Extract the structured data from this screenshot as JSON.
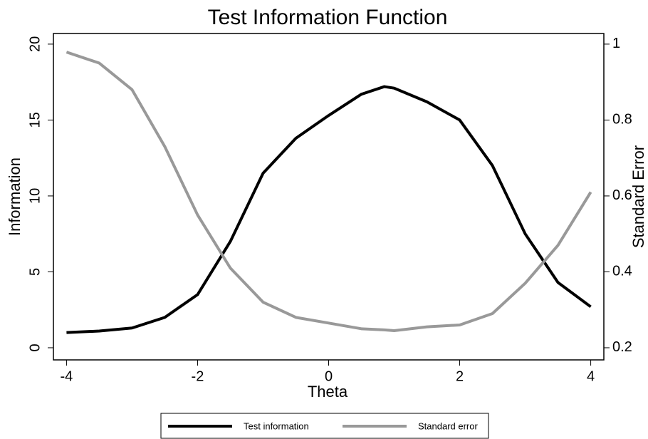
{
  "chart_data": {
    "type": "line",
    "title": "Test Information Function",
    "x_label": "Theta",
    "y_label": "Information",
    "y2_label": "Standard Error",
    "x": [
      -4,
      -3.5,
      -3,
      -2.5,
      -2,
      -1.5,
      -1,
      -0.5,
      0,
      0.5,
      0.85,
      1,
      1.5,
      2,
      2.5,
      3,
      3.5,
      4
    ],
    "series": [
      {
        "name": "Test information",
        "color": "#000000",
        "axis": "y",
        "values": [
          1.0,
          1.1,
          1.3,
          2.0,
          3.5,
          7.0,
          11.5,
          13.8,
          15.3,
          16.7,
          17.2,
          17.1,
          16.2,
          15.0,
          12.0,
          7.5,
          4.3,
          2.7
        ]
      },
      {
        "name": "Standard error",
        "color": "#999999",
        "axis": "y2",
        "values": [
          0.979,
          0.95,
          0.88,
          0.73,
          0.55,
          0.41,
          0.32,
          0.28,
          0.265,
          0.25,
          0.247,
          0.245,
          0.255,
          0.26,
          0.29,
          0.37,
          0.47,
          0.61
        ]
      }
    ],
    "xlim": [
      -4.2,
      4.2
    ],
    "xticks": [
      -4,
      -2,
      0,
      2,
      4
    ],
    "ylim": [
      -0.8,
      20.7
    ],
    "yticks": [
      0,
      5,
      10,
      15,
      20
    ],
    "y2lim": [
      0.168,
      1.028
    ],
    "y2ticks": [
      0.2,
      0.4,
      0.6,
      0.8,
      1
    ],
    "grid": false,
    "legend": "bottom"
  }
}
